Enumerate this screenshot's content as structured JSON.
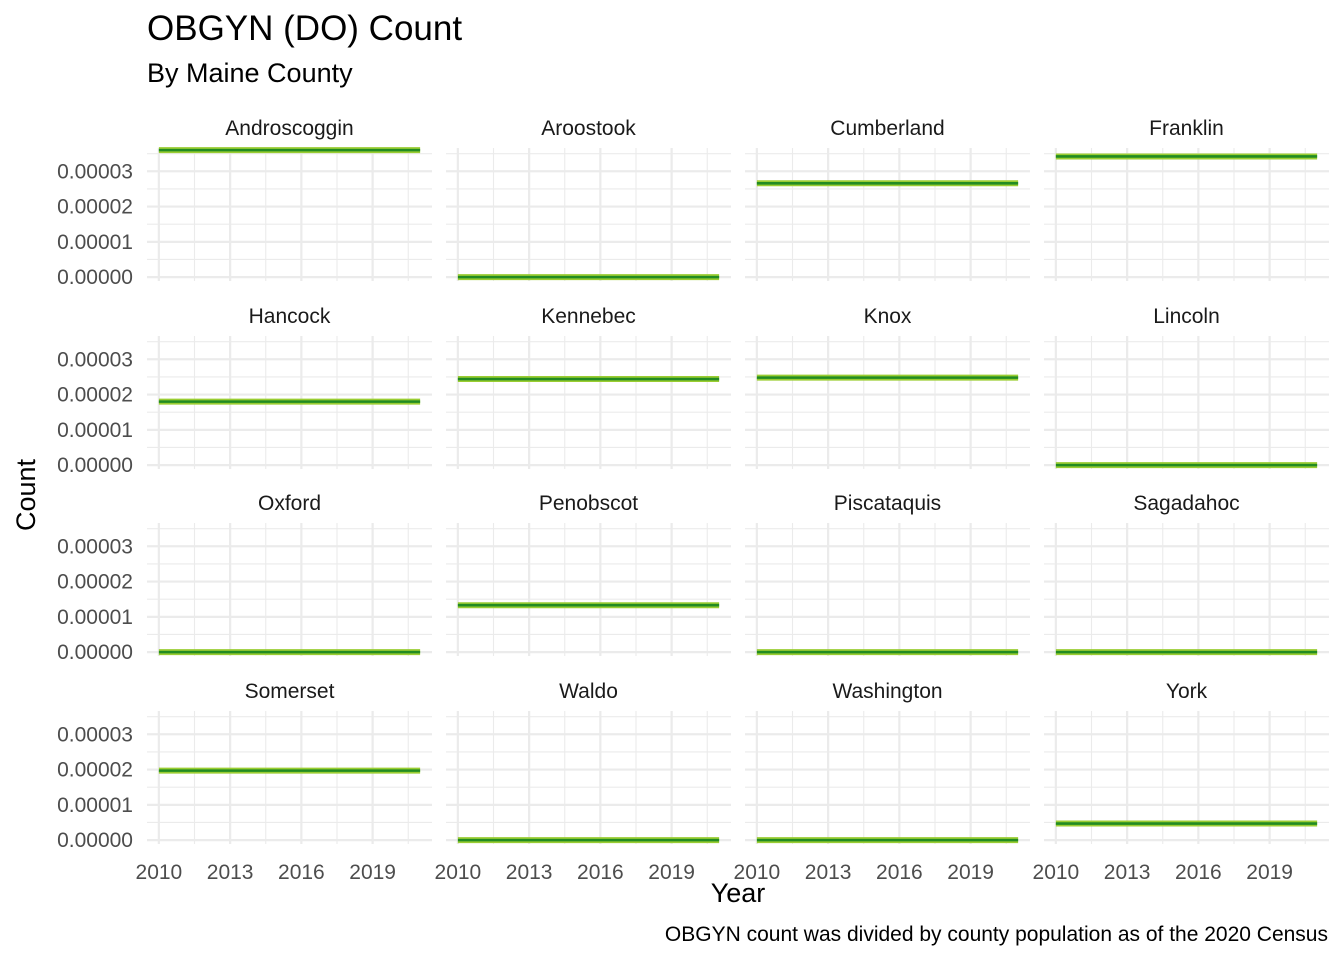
{
  "chart_data": {
    "type": "line",
    "title": "OBGYN (DO) Count",
    "subtitle": "By Maine County",
    "xlabel": "Year",
    "ylabel": "Count",
    "caption": "OBGYN count was divided by county population as of the 2020 Census",
    "x": [
      2010,
      2021
    ],
    "xlim": [
      2009.5,
      2021.5
    ],
    "ylim": [
      -1.1e-06,
      3.66e-05
    ],
    "x_ticks": [
      2010,
      2013,
      2016,
      2019
    ],
    "x_tick_labels": [
      "2010",
      "2013",
      "2016",
      "2019"
    ],
    "y_ticks": [
      0,
      1e-05,
      2e-05,
      3e-05
    ],
    "y_tick_labels": [
      "0.00000",
      "0.00001",
      "0.00002",
      "0.00003"
    ],
    "grid": true,
    "line_color": "#228B22",
    "highlight_color": "#9ACD32",
    "facets": [
      {
        "county": "Androscoggin",
        "value": 3.6e-05
      },
      {
        "county": "Aroostook",
        "value": 0
      },
      {
        "county": "Cumberland",
        "value": 2.66e-05
      },
      {
        "county": "Franklin",
        "value": 3.42e-05
      },
      {
        "county": "Hancock",
        "value": 1.8e-05
      },
      {
        "county": "Kennebec",
        "value": 2.44e-05
      },
      {
        "county": "Knox",
        "value": 2.48e-05
      },
      {
        "county": "Lincoln",
        "value": 0
      },
      {
        "county": "Oxford",
        "value": 0
      },
      {
        "county": "Penobscot",
        "value": 1.33e-05
      },
      {
        "county": "Piscataquis",
        "value": 0
      },
      {
        "county": "Sagadahoc",
        "value": 0
      },
      {
        "county": "Somerset",
        "value": 1.97e-05
      },
      {
        "county": "Waldo",
        "value": 0
      },
      {
        "county": "Washington",
        "value": 0
      },
      {
        "county": "York",
        "value": 4.7e-06
      }
    ]
  }
}
